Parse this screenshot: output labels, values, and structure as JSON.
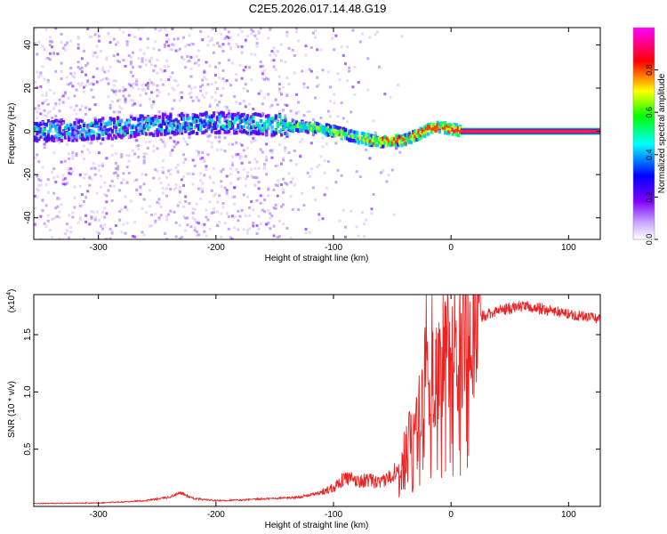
{
  "figure_title": "C2E5.2026.017.14.48.G19",
  "chart_data": [
    {
      "type": "heatmap",
      "title": "C2E5.2026.017.14.48.G19",
      "xlabel": "Height of straight line (km)",
      "ylabel": "Frequency (Hz)",
      "xlim": [
        -355,
        127
      ],
      "ylim": [
        -50,
        48
      ],
      "x_ticks": [
        -300,
        -200,
        -100,
        0,
        100
      ],
      "y_ticks": [
        -40,
        -20,
        0,
        20,
        40
      ],
      "x_tick_labels": [
        "-300",
        "-200",
        "-100",
        "0",
        "100"
      ],
      "y_tick_labels": [
        "-40",
        "-20",
        "0",
        "20",
        "40"
      ],
      "colorbar": {
        "label": "Normalized spectral amplitude",
        "range": [
          0,
          1
        ],
        "ticks": [
          0.0,
          0.2,
          0.4,
          0.6,
          0.8
        ],
        "tick_labels": [
          "0.0",
          "0.2",
          "0.4",
          "0.6",
          "0.8"
        ],
        "colors": [
          "#ffffff",
          "#8000ff",
          "#0000ff",
          "#00ffff",
          "#00ff00",
          "#ffff00",
          "#ff0000",
          "#ff00ff"
        ]
      },
      "ridge": {
        "description_points_x_km": [
          -355,
          -300,
          -250,
          -200,
          -150,
          -120,
          -100,
          -80,
          -60,
          -40,
          -20,
          -10,
          0,
          10,
          127
        ],
        "frequency_hz": [
          0,
          1,
          3,
          4,
          3,
          2,
          0,
          -3,
          -5,
          -4,
          1,
          2,
          1,
          0,
          0
        ]
      },
      "line_segment": {
        "x_start": 8,
        "x_end": 127,
        "frequency_hz": 0,
        "color": "#ff0000"
      }
    },
    {
      "type": "line",
      "xlabel": "Height of straight line (km)",
      "ylabel": "SNR (10 * v/v)",
      "y_multiplier_label": "(x10",
      "y_multiplier_exp": "4",
      "xlim": [
        -355,
        127
      ],
      "ylim": [
        0,
        18500
      ],
      "x_ticks": [
        -300,
        -200,
        -100,
        0,
        100
      ],
      "y_ticks": [
        5000,
        10000,
        15000
      ],
      "x_tick_labels": [
        "-300",
        "-200",
        "-100",
        "0",
        "100"
      ],
      "y_tick_labels": [
        "0.5",
        "1.0",
        "1.5"
      ],
      "series": [
        {
          "name": "SNR",
          "color": "#ee2222",
          "x": [
            -355,
            -300,
            -260,
            -240,
            -230,
            -220,
            -200,
            -180,
            -150,
            -130,
            -110,
            -100,
            -90,
            -80,
            -70,
            -60,
            -50,
            -40,
            -35,
            -30,
            -25,
            -20,
            -15,
            -10,
            -5,
            0,
            10,
            20,
            30,
            40,
            60,
            80,
            100,
            127
          ],
          "y": [
            250,
            300,
            500,
            800,
            1200,
            700,
            500,
            550,
            700,
            800,
            1200,
            1700,
            2500,
            2200,
            2300,
            2000,
            2800,
            4500,
            6000,
            8500,
            10000,
            11500,
            12000,
            12500,
            13500,
            14000,
            15200,
            16200,
            16800,
            17100,
            17500,
            17200,
            16800,
            16400
          ]
        }
      ]
    }
  ]
}
